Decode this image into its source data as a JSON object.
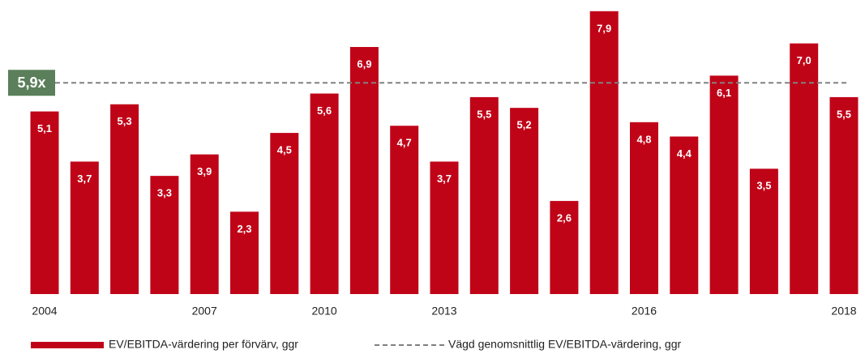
{
  "chart_data": {
    "type": "bar",
    "categories": [
      "2004",
      null,
      null,
      null,
      "2007",
      null,
      null,
      "2010",
      null,
      null,
      "2013",
      null,
      null,
      null,
      null,
      "2016",
      null,
      null,
      null,
      null,
      "2018"
    ],
    "series": [
      {
        "name": "EV/EBITDA-värdering per förvärv, ggr",
        "color": "#c00418",
        "values": [
          5.1,
          3.7,
          5.3,
          3.3,
          3.9,
          2.3,
          4.5,
          5.6,
          6.9,
          4.7,
          3.7,
          5.5,
          5.2,
          2.6,
          7.9,
          4.8,
          4.4,
          6.1,
          3.5,
          7.0,
          5.5
        ],
        "value_labels": [
          "5,1",
          "3,7",
          "5,3",
          "3,3",
          "3,9",
          "2,3",
          "4,5",
          "5,6",
          "6,9",
          "4,7",
          "3,7",
          "5,5",
          "5,2",
          "2,6",
          "7,9",
          "4,8",
          "4,4",
          "6,1",
          "3,5",
          "7,0",
          "5,5"
        ]
      }
    ],
    "reference_line": {
      "name": "Vägd genomsnittlig EV/EBITDA-värdering, ggr",
      "value": 5.9,
      "label": "5,9x",
      "color": "#808080",
      "label_color": "#5a7f5a"
    },
    "ylim": [
      0,
      8
    ]
  }
}
